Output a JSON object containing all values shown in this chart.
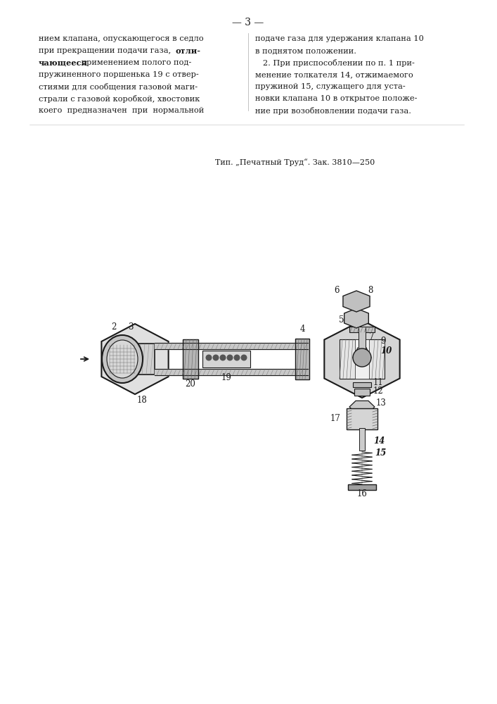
{
  "page_number": "-- 3 --",
  "background_color": "#ffffff",
  "text_color": "#1a1a1a",
  "draw_color": "#1a1a1a",
  "hatch_color": "#666666",
  "col1_text": [
    "нием клапана, опускающегося в седло",
    "при прекращении подачи газа, отли-",
    "чающееся применением полого под-",
    "пружиненного поршенька 19 с отвер-",
    "стиями для сообщения газовой маги-",
    "страли с газовой коробкой, хвостовик",
    "коего  предназначен  при  нормальной"
  ],
  "col2_text": [
    "подаче газа для удержания клапана 10",
    "в поднятом положении.",
    "   2. При приспособлении по п. 1 при-",
    "менение толкателя 14, отжимаемого",
    "пружиной 15, служащего для уста-",
    "новки клапана 10 в открытое положе-",
    "ние при возобновлении подачи газа."
  ],
  "footer_text": "Тип. \"Печатный Труд\". Зак. 3810--250"
}
